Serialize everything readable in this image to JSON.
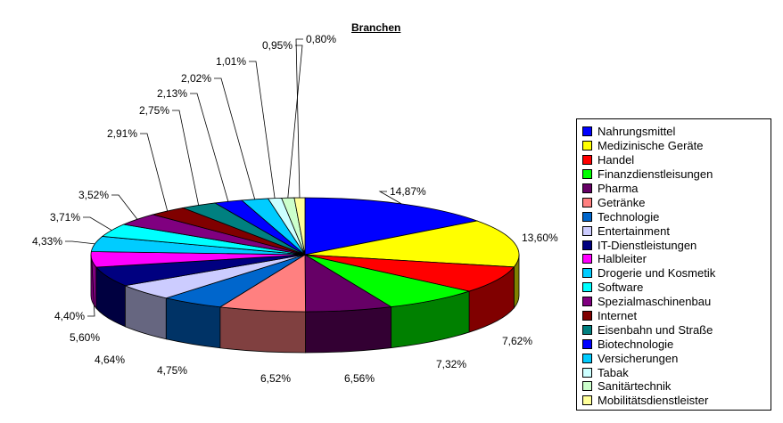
{
  "chart_data": {
    "type": "pie",
    "title": "Branchen",
    "style": "3d-exploded-perspective",
    "value_format": "percent-with-comma",
    "slices": [
      {
        "label": "Nahrungsmittel",
        "value": 14.87,
        "display": "14,87%",
        "color": "#0000FF"
      },
      {
        "label": "Medizinische Geräte",
        "value": 13.6,
        "display": "13,60%",
        "color": "#FFFF00"
      },
      {
        "label": "Handel",
        "value": 7.62,
        "display": "7,62%",
        "color": "#FF0000"
      },
      {
        "label": "Finanzdienstleisungen",
        "value": 7.32,
        "display": "7,32%",
        "color": "#00FF00"
      },
      {
        "label": "Pharma",
        "value": 6.56,
        "display": "6,56%",
        "color": "#660066"
      },
      {
        "label": "Getränke",
        "value": 6.52,
        "display": "6,52%",
        "color": "#FF8080"
      },
      {
        "label": "Technologie",
        "value": 4.75,
        "display": "4,75%",
        "color": "#0066CC"
      },
      {
        "label": "Entertainment",
        "value": 4.64,
        "display": "4,64%",
        "color": "#CCCCFF"
      },
      {
        "label": "IT-Dienstleistungen",
        "value": 5.6,
        "display": "5,60%",
        "color": "#000080"
      },
      {
        "label": "Halbleiter",
        "value": 4.4,
        "display": "4,40%",
        "color": "#FF00FF"
      },
      {
        "label": "Drogerie und Kosmetik",
        "value": 4.33,
        "display": "4,33%",
        "color": "#00CCFF"
      },
      {
        "label": "Software",
        "value": 3.71,
        "display": "3,71%",
        "color": "#00FFFF"
      },
      {
        "label": "Spezialmaschinenbau",
        "value": 3.52,
        "display": "3,52%",
        "color": "#800080"
      },
      {
        "label": "Internet",
        "value": 2.91,
        "display": "2,91%",
        "color": "#800000"
      },
      {
        "label": "Eisenbahn und Straße",
        "value": 2.75,
        "display": "2,75%",
        "color": "#008080"
      },
      {
        "label": "Biotechnologie",
        "value": 2.13,
        "display": "2,13%",
        "color": "#0000FF"
      },
      {
        "label": "Versicherungen",
        "value": 2.02,
        "display": "2,02%",
        "color": "#00CCFF"
      },
      {
        "label": "Tabak",
        "value": 1.01,
        "display": "1,01%",
        "color": "#CCFFFF"
      },
      {
        "label": "Sanitärtechnik",
        "value": 0.95,
        "display": "0,95%",
        "color": "#CCFFCC"
      },
      {
        "label": "Mobilitätsdienstleister",
        "value": 0.8,
        "display": "0,80%",
        "color": "#FFFF99"
      }
    ],
    "legend": "right"
  }
}
